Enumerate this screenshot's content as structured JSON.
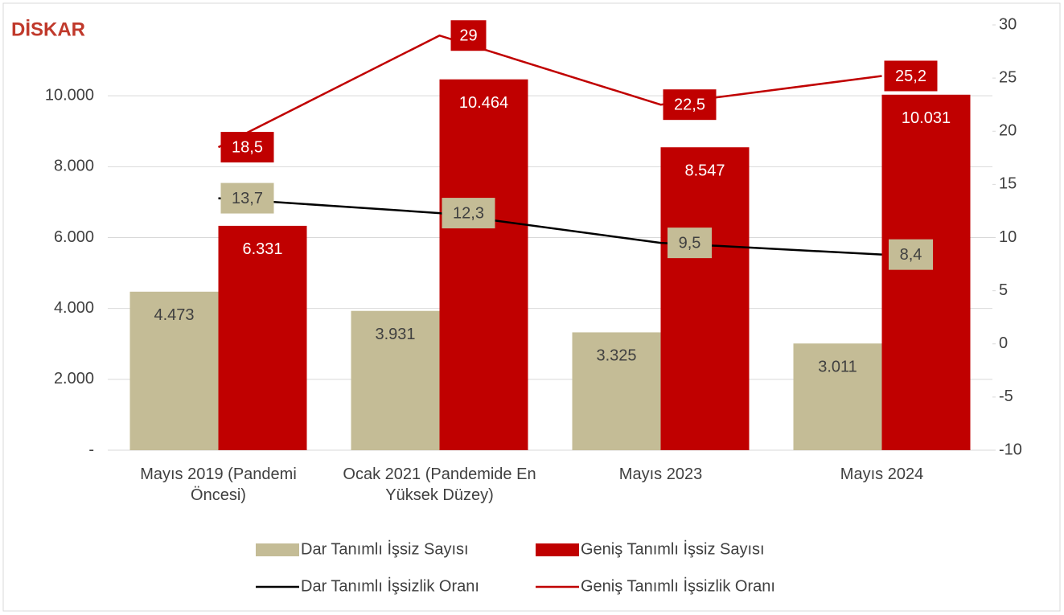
{
  "chart_data": {
    "type": "bar",
    "logo": "DİSKAR",
    "categories": [
      "Mayıs 2019 (Pandemi Öncesi)",
      "Ocak 2021 (Pandemide En Yüksek Düzey)",
      "Mayıs 2023",
      "Mayıs 2024"
    ],
    "series": [
      {
        "name": "Dar Tanımlı İşsiz Sayısı",
        "type": "bar",
        "color": "#c4bc96",
        "values": [
          4473,
          3931,
          3325,
          3011
        ],
        "value_labels": [
          "4.473",
          "3.931",
          "3.325",
          "3.011"
        ]
      },
      {
        "name": "Geniş Tanımlı İşsiz Sayısı",
        "type": "bar",
        "color": "#c00000",
        "values": [
          6331,
          10464,
          8547,
          10031
        ],
        "value_labels": [
          "6.331",
          "10.464",
          "8.547",
          "10.031"
        ]
      },
      {
        "name": "Dar Tanımlı İşsizlik Oranı",
        "type": "line",
        "axis": "y2",
        "color": "#000000",
        "label_color": "#c4bc96",
        "values": [
          13.7,
          12.3,
          9.5,
          8.4
        ],
        "value_labels": [
          "13,7",
          "12,3",
          "9,5",
          "8,4"
        ]
      },
      {
        "name": "Geniş Tanımlı İşsizlik Oranı",
        "type": "line",
        "axis": "y2",
        "color": "#c00000",
        "label_color": "#c00000",
        "values": [
          18.5,
          29,
          22.5,
          25.2
        ],
        "value_labels": [
          "18,5",
          "29",
          "22,5",
          "25,2"
        ]
      }
    ],
    "ylim": [
      0,
      12000
    ],
    "yticks": [
      {
        "value": 0,
        "label": "-"
      },
      {
        "value": 2000,
        "label": "2.000"
      },
      {
        "value": 4000,
        "label": "4.000"
      },
      {
        "value": 6000,
        "label": "6.000"
      },
      {
        "value": 8000,
        "label": "8.000"
      },
      {
        "value": 10000,
        "label": "10.000"
      }
    ],
    "y2lim": [
      -10,
      30
    ],
    "y2ticks": [
      -10,
      -5,
      0,
      5,
      10,
      15,
      20,
      25,
      30
    ],
    "grid": true,
    "legend": "bottom"
  }
}
